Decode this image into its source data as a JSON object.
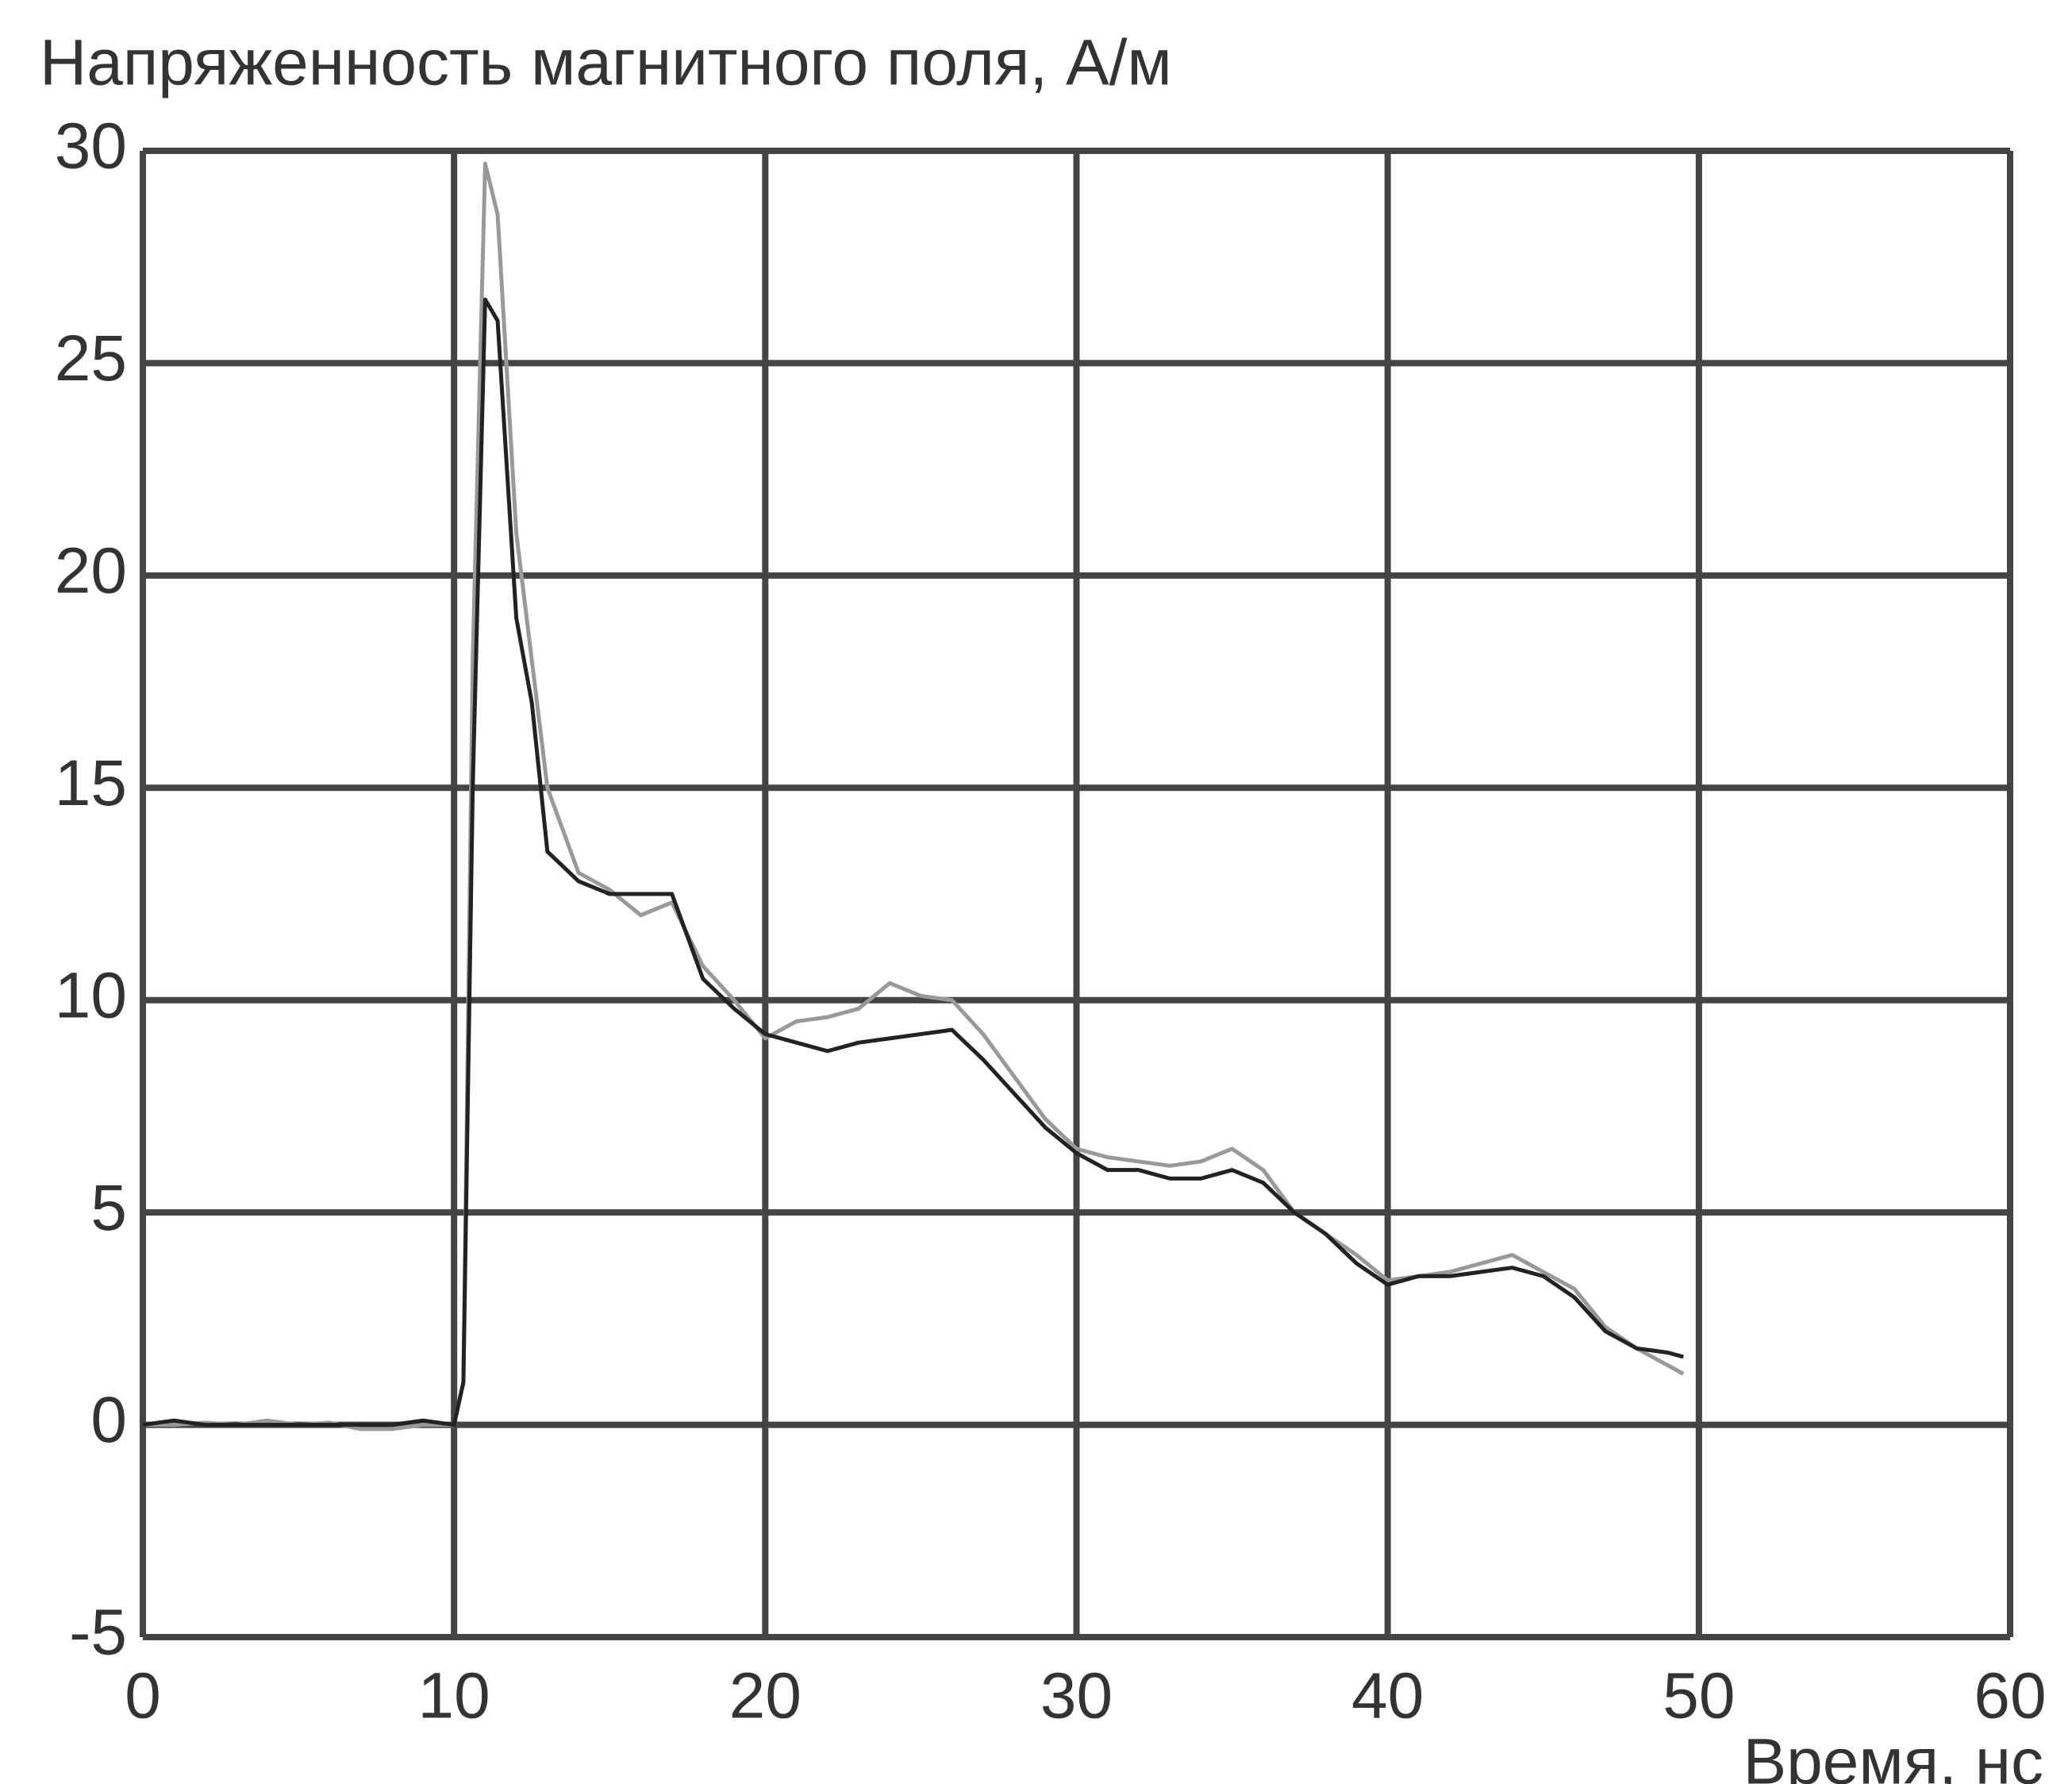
{
  "chart_data": {
    "type": "line",
    "title": "Напряженность магнитного поля, А/м",
    "x_label": "Время, нс",
    "x": [
      0,
      1,
      2,
      3,
      4,
      5,
      6,
      7,
      8,
      9,
      10,
      10.3,
      10.6,
      11,
      11.4,
      12,
      12.5,
      13,
      14,
      15,
      16,
      17,
      18,
      19,
      20,
      21,
      22,
      23,
      24,
      25,
      26,
      27,
      28,
      29,
      30,
      31,
      32,
      33,
      34,
      35,
      36,
      37,
      38,
      39,
      40,
      41,
      42,
      43,
      44,
      45,
      46,
      47,
      48,
      49,
      49.5
    ],
    "series": [
      {
        "color": "#999999",
        "values": [
          0,
          0,
          0.05,
          0,
          0.1,
          0,
          0.05,
          -0.1,
          -0.1,
          0,
          0,
          1,
          18,
          29.7,
          28.5,
          21,
          18,
          15,
          13,
          12.6,
          12,
          12.3,
          10.8,
          10,
          9.1,
          9.5,
          9.6,
          9.8,
          10.4,
          10.1,
          10,
          9.2,
          8.2,
          7.2,
          6.5,
          6.3,
          6.2,
          6.1,
          6.2,
          6.5,
          6,
          5,
          4.5,
          4,
          3.4,
          3.5,
          3.6,
          3.8,
          4,
          3.6,
          3.2,
          2.3,
          1.8,
          1.4,
          1.2
        ]
      },
      {
        "color": "#222222",
        "values": [
          0,
          0.1,
          0,
          0,
          0,
          0,
          0,
          0,
          0,
          0.1,
          0,
          1,
          15,
          26.5,
          26,
          19,
          17,
          13.5,
          12.8,
          12.5,
          12.5,
          12.5,
          10.5,
          9.8,
          9.2,
          9,
          8.8,
          9,
          9.1,
          9.2,
          9.3,
          8.6,
          7.8,
          7,
          6.4,
          6,
          6,
          5.8,
          5.8,
          6,
          5.7,
          5,
          4.5,
          3.8,
          3.3,
          3.5,
          3.5,
          3.6,
          3.7,
          3.5,
          3,
          2.2,
          1.8,
          1.7,
          1.6
        ]
      }
    ],
    "xlim": [
      0,
      60
    ],
    "xticks": [
      0,
      10,
      20,
      30,
      40,
      50,
      60
    ],
    "ylim": [
      -5,
      30
    ],
    "yticks": [
      -5,
      0,
      5,
      10,
      15,
      20,
      25,
      30
    ],
    "grid": true
  }
}
